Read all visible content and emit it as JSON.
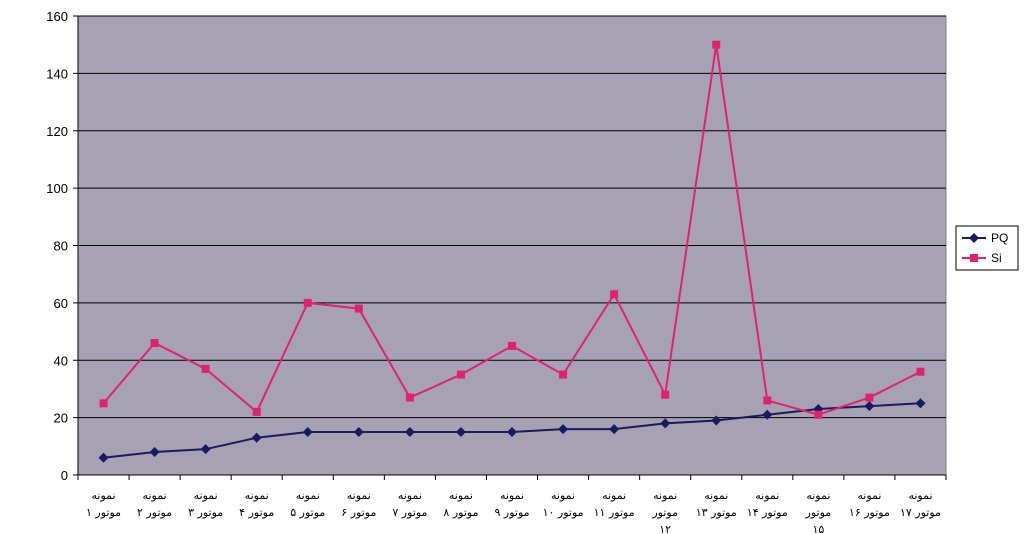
{
  "chart_data": {
    "type": "line",
    "ylim": [
      0,
      160
    ],
    "yticks": [
      0,
      20,
      40,
      60,
      80,
      100,
      120,
      140,
      160
    ],
    "categories": [
      [
        "نمونه",
        "موتور ۱"
      ],
      [
        "نمونه",
        "موتور ۲"
      ],
      [
        "نمونه",
        "موتور ۳"
      ],
      [
        "نمونه",
        "موتور ۴"
      ],
      [
        "نمونه",
        "موتور ۵"
      ],
      [
        "نمونه",
        "موتور ۶"
      ],
      [
        "نمونه",
        "موتور ۷"
      ],
      [
        "نمونه",
        "موتور ۸"
      ],
      [
        "نمونه",
        "موتور ۹"
      ],
      [
        "نمونه",
        "موتور ۱۰"
      ],
      [
        "نمونه",
        "موتور ۱۱"
      ],
      [
        "نمونه",
        "موتور",
        "۱۲"
      ],
      [
        "نمونه",
        "موتور ۱۳"
      ],
      [
        "نمونه",
        "موتور ۱۴"
      ],
      [
        "نمونه",
        "موتور",
        "۱۵"
      ],
      [
        "نمونه",
        "موتور ۱۶"
      ],
      [
        "نمونه",
        "موتور ۱۷"
      ]
    ],
    "series": [
      {
        "name": "PQ",
        "color": "#1a1a5e",
        "marker": "diamond",
        "values": [
          6,
          8,
          9,
          13,
          15,
          15,
          15,
          15,
          15,
          16,
          16,
          18,
          19,
          21,
          23,
          24,
          25
        ]
      },
      {
        "name": "Si",
        "color": "#e0226e",
        "marker": "square",
        "values": [
          25,
          46,
          37,
          22,
          60,
          58,
          27,
          35,
          45,
          35,
          63,
          28,
          150,
          26,
          21,
          27,
          36
        ]
      }
    ],
    "grid": true,
    "legend_position": "right",
    "plot_background": "#a6a2b4"
  }
}
